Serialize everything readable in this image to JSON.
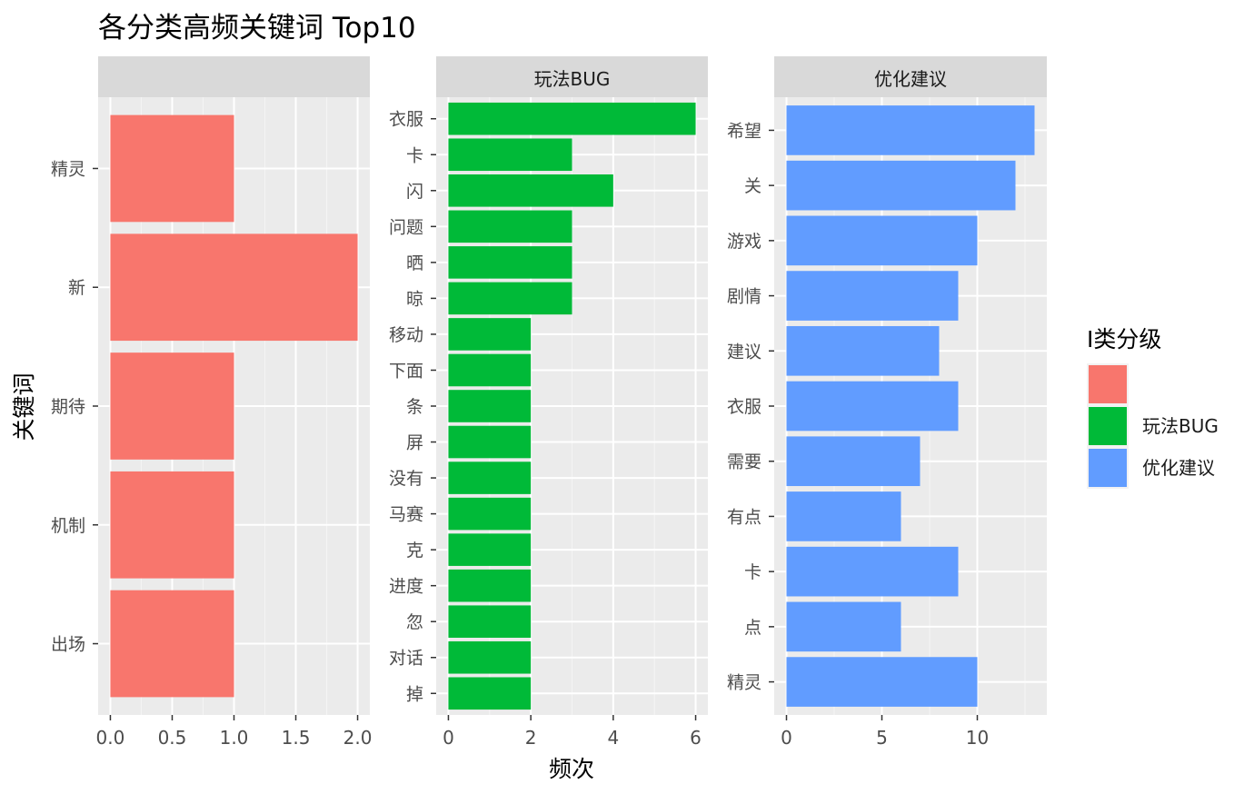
{
  "chart_data": {
    "type": "bar",
    "orientation": "horizontal",
    "title": "各分类高频关键词 Top10",
    "xlabel": "频次",
    "ylabel": "关键词",
    "grid": true,
    "legend": {
      "title": "I类分级",
      "placement": "right",
      "entries": [
        {
          "label": "",
          "color": "#F8766D"
        },
        {
          "label": "玩法BUG",
          "color": "#00BA38"
        },
        {
          "label": "优化建议",
          "color": "#619CFF"
        }
      ]
    },
    "facets": [
      {
        "strip": "",
        "color": "#F8766D",
        "xlim": [
          0,
          2
        ],
        "xticks": [
          "0.0",
          "0.5",
          "1.0",
          "1.5",
          "2.0"
        ],
        "tick_values": [
          0,
          0.5,
          1,
          1.5,
          2
        ],
        "categories": [
          "精灵",
          "新",
          "期待",
          "机制",
          "出场"
        ],
        "values": [
          1,
          2,
          1,
          1,
          1
        ]
      },
      {
        "strip": "玩法BUG",
        "color": "#00BA38",
        "xlim": [
          0,
          6
        ],
        "xticks": [
          "0",
          "2",
          "4",
          "6"
        ],
        "tick_values": [
          0,
          2,
          4,
          6
        ],
        "categories": [
          "衣服",
          "卡",
          "闪",
          "问题",
          "晒",
          "晾",
          "移动",
          "下面",
          "条",
          "屏",
          "没有",
          "马赛",
          "克",
          "进度",
          "忽",
          "对话",
          "掉"
        ],
        "values": [
          6,
          3,
          4,
          3,
          3,
          3,
          2,
          2,
          2,
          2,
          2,
          2,
          2,
          2,
          2,
          2,
          2
        ]
      },
      {
        "strip": "优化建议",
        "color": "#619CFF",
        "xlim": [
          0,
          13
        ],
        "xticks": [
          "0",
          "5",
          "10"
        ],
        "tick_values": [
          0,
          5,
          10
        ],
        "categories": [
          "希望",
          "关",
          "游戏",
          "剧情",
          "建议",
          "衣服",
          "需要",
          "有点",
          "卡",
          "点",
          "精灵"
        ],
        "values": [
          13,
          12,
          10,
          9,
          8,
          9,
          7,
          6,
          9,
          6,
          10
        ]
      }
    ]
  }
}
